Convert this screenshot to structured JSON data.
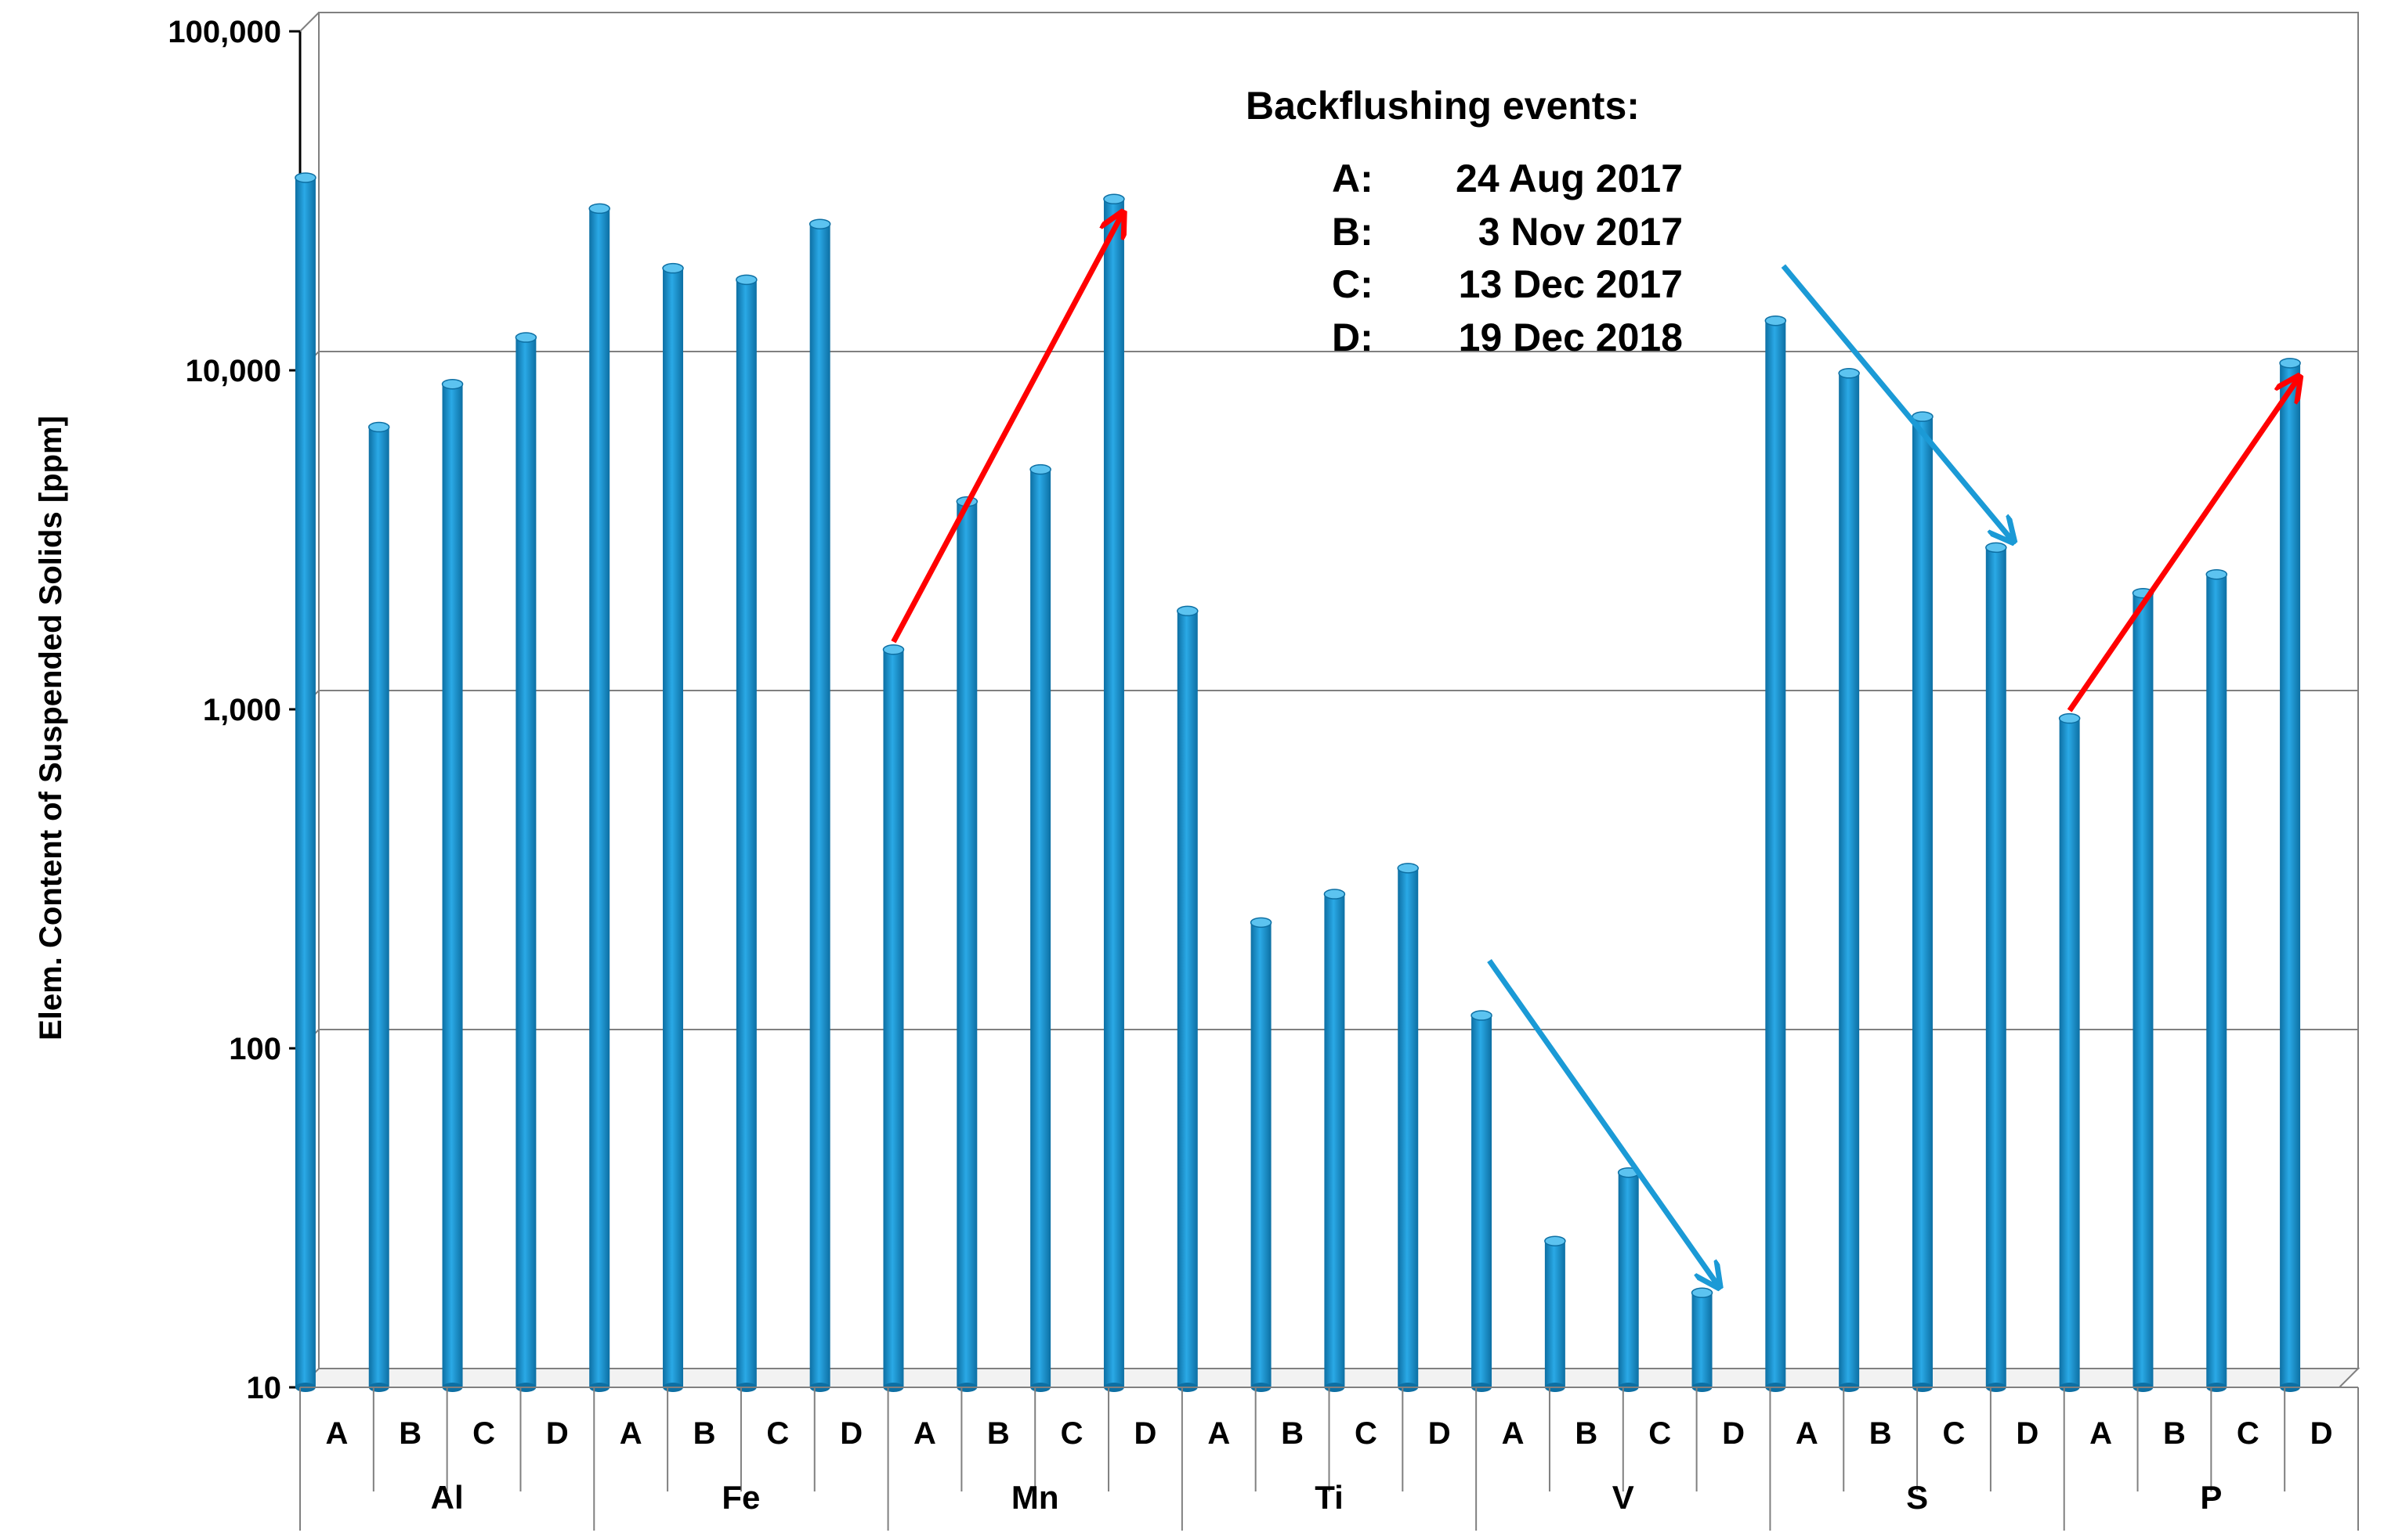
{
  "chart_data": {
    "type": "bar",
    "title": "",
    "xlabel": "",
    "ylabel": "Elem. Content of Suspended Solids  [ppm]",
    "y_scale": "log",
    "ylim": [
      10,
      100000
    ],
    "y_ticks": [
      10,
      100,
      1000,
      10000,
      100000
    ],
    "y_tick_labels": [
      "10",
      "100",
      "1,000",
      "10,000",
      "100,000"
    ],
    "gridlines": "horizontal",
    "groups": [
      "Al",
      "Fe",
      "Mn",
      "Ti",
      "V",
      "S",
      "P"
    ],
    "subcategories": [
      "A",
      "B",
      "C",
      "D"
    ],
    "bar_color": "#1b9ad6",
    "values": {
      "Al": [
        37000,
        6800,
        9100,
        12500
      ],
      "Fe": [
        30000,
        20000,
        18500,
        27000
      ],
      "Mn": [
        1500,
        4100,
        5100,
        32000
      ],
      "Ti": [
        1950,
        235,
        285,
        340
      ],
      "V": [
        125,
        27,
        43,
        19
      ],
      "S": [
        14000,
        9800,
        7300,
        3000
      ],
      "P": [
        940,
        2200,
        2500,
        10500
      ]
    },
    "legend": {
      "title": "Backflushing events:",
      "entries": [
        {
          "key": "A:",
          "date": "24 Aug 2017"
        },
        {
          "key": "B:",
          "date": "3 Nov 2017"
        },
        {
          "key": "C:",
          "date": "13 Dec 2017"
        },
        {
          "key": "D:",
          "date": "19 Dec 2018"
        }
      ],
      "placement": "top-center"
    },
    "trend_arrows": [
      {
        "group": "Mn",
        "direction": "increase",
        "color": "#ff0000"
      },
      {
        "group": "V",
        "direction": "decrease",
        "color": "#1b9ad6"
      },
      {
        "group": "S",
        "direction": "decrease",
        "color": "#1b9ad6"
      },
      {
        "group": "P",
        "direction": "increase",
        "color": "#ff0000"
      }
    ]
  }
}
